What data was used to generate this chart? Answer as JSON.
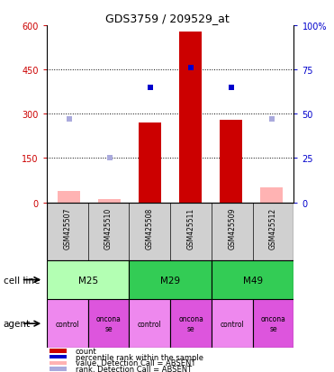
{
  "title": "GDS3759 / 209529_at",
  "samples": [
    "GSM425507",
    "GSM425510",
    "GSM425508",
    "GSM425511",
    "GSM425509",
    "GSM425512"
  ],
  "bar_values": [
    null,
    null,
    270,
    580,
    280,
    null
  ],
  "bar_values_absent": [
    40,
    12,
    null,
    null,
    null,
    50
  ],
  "scatter_values_pct": [
    null,
    null,
    65,
    76,
    65,
    null
  ],
  "scatter_values_absent_pct": [
    47,
    25,
    null,
    null,
    null,
    47
  ],
  "bar_color": "#cc0000",
  "bar_absent_color": "#ffb3b3",
  "scatter_color": "#0000cc",
  "scatter_absent_color": "#aaaadd",
  "ylim_left": [
    0,
    600
  ],
  "ylim_right": [
    0,
    100
  ],
  "yticks_left": [
    0,
    150,
    300,
    450,
    600
  ],
  "yticks_right": [
    0,
    25,
    50,
    75,
    100
  ],
  "ytick_labels_left": [
    "0",
    "150",
    "300",
    "450",
    "600"
  ],
  "ytick_labels_right": [
    "0",
    "25",
    "50",
    "75",
    "100%"
  ],
  "grid_lines": [
    150,
    300,
    450
  ],
  "cell_line_data": [
    {
      "label": "M25",
      "start": 0,
      "end": 2,
      "color": "#b3ffb3"
    },
    {
      "label": "M29",
      "start": 2,
      "end": 4,
      "color": "#33cc55"
    },
    {
      "label": "M49",
      "start": 4,
      "end": 6,
      "color": "#33cc55"
    }
  ],
  "agent_data": [
    {
      "label": "control",
      "start": 0,
      "end": 1,
      "color": "#ee88ee"
    },
    {
      "label": "oncona\nse",
      "start": 1,
      "end": 2,
      "color": "#dd55dd"
    },
    {
      "label": "control",
      "start": 2,
      "end": 3,
      "color": "#ee88ee"
    },
    {
      "label": "oncona\nse",
      "start": 3,
      "end": 4,
      "color": "#dd55dd"
    },
    {
      "label": "control",
      "start": 4,
      "end": 5,
      "color": "#ee88ee"
    },
    {
      "label": "oncona\nse",
      "start": 5,
      "end": 6,
      "color": "#dd55dd"
    }
  ],
  "cell_line_row_label": "cell line",
  "agent_row_label": "agent",
  "legend_items": [
    {
      "color": "#cc0000",
      "label": "count"
    },
    {
      "color": "#0000cc",
      "label": "percentile rank within the sample"
    },
    {
      "color": "#ffb3b3",
      "label": "value, Detection Call = ABSENT"
    },
    {
      "color": "#aaaadd",
      "label": "rank, Detection Call = ABSENT"
    }
  ],
  "bg_color": "#ffffff",
  "tick_color_left": "#cc0000",
  "tick_color_right": "#0000cc"
}
